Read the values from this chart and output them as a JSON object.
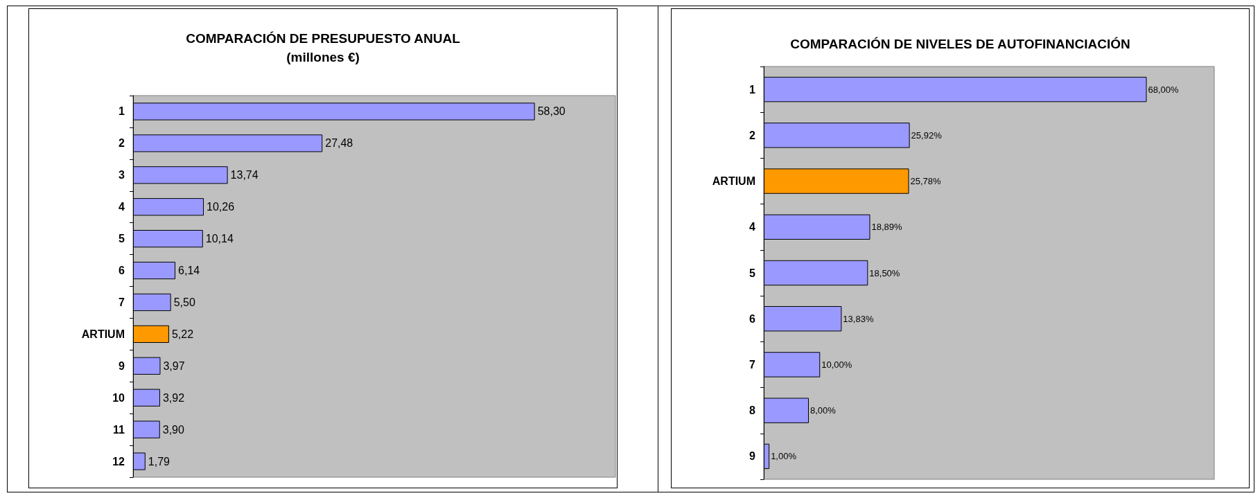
{
  "chart_data": [
    {
      "type": "bar",
      "orientation": "horizontal",
      "title": "COMPARACIÓN DE PRESUPUESTO ANUAL",
      "subtitle": "(millones €)",
      "categories": [
        "1",
        "2",
        "3",
        "4",
        "5",
        "6",
        "7",
        "ARTIUM",
        "9",
        "10",
        "11",
        "12"
      ],
      "values": [
        58.3,
        27.48,
        13.74,
        10.26,
        10.14,
        6.14,
        5.5,
        5.22,
        3.97,
        3.92,
        3.9,
        1.79
      ],
      "colors": [
        "#9999ff",
        "#9999ff",
        "#9999ff",
        "#9999ff",
        "#9999ff",
        "#9999ff",
        "#9999ff",
        "#ff9900",
        "#9999ff",
        "#9999ff",
        "#9999ff",
        "#9999ff"
      ],
      "value_labels": [
        "58,30",
        "27,48",
        "13,74",
        "10,26",
        "10,14",
        "6,14",
        "5,50",
        "5,22",
        "3,97",
        "3,92",
        "3,90",
        "1,79"
      ],
      "xlim": [
        0,
        70
      ],
      "tick_labels": "y"
    },
    {
      "type": "bar",
      "orientation": "horizontal",
      "title": "COMPARACIÓN DE NIVELES DE AUTOFINANCIACIÓN",
      "categories": [
        "1",
        "2",
        "ARTIUM",
        "4",
        "5",
        "6",
        "7",
        "8",
        "9"
      ],
      "values": [
        68.0,
        25.92,
        25.78,
        18.89,
        18.5,
        13.83,
        10.0,
        8.0,
        1.0
      ],
      "colors": [
        "#9999ff",
        "#9999ff",
        "#ff9900",
        "#9999ff",
        "#9999ff",
        "#9999ff",
        "#9999ff",
        "#9999ff",
        "#9999ff"
      ],
      "value_labels": [
        "68,00%",
        "25,92%",
        "25,78%",
        "18,89%",
        "18,50%",
        "13,83%",
        "10,00%",
        "8,00%",
        "1,00%"
      ],
      "xlim": [
        0,
        80
      ],
      "tick_labels": "y"
    }
  ]
}
